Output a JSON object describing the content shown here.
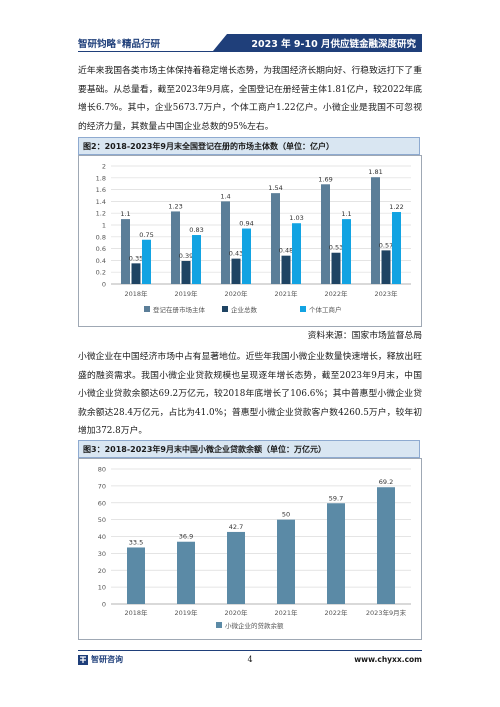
{
  "header": {
    "brand": "智研钧略",
    "brand_mark": "®",
    "brand_suffix": "精品行研",
    "report_title": "2023 年 9-10 月供应链金融深度研究"
  },
  "paragraphs": {
    "p1": "近年来我国各类市场主体保持着稳定增长态势，为我国经济长期向好、行稳致远打下了重要基础。从总量看，截至2023年9月底，全国登记在册经营主体1.81亿户，较2022年底增长6.7%。其中，企业5673.7万户，个体工商户1.22亿户。小微企业是我国不可忽视的经济力量，其数量占中国企业总数的95%左右。",
    "p2": "小微企业在中国经济市场中占有显著地位。近些年我国小微企业数量快速增长，释放出旺盛的融资需求。我国小微企业贷款规模也呈现逐年增长态势，截至2023年9月末，中国小微企业贷款余额达69.2万亿元，较2018年底增长了106.6%；其中普惠型小微企业贷款余额达28.4万亿元，占比为41.0%；普惠型小微企业贷款客户数4260.5万户，较年初增加372.8万户。"
  },
  "fig2": {
    "title": "图2：2018-2023年9月末全国登记在册的市场主体数（单位：亿户）",
    "source": "资料来源：国家市场监督总局"
  },
  "fig3": {
    "title": "图3：2018-2023年9月末中国小微企业贷款余额（单位：万亿元）"
  },
  "footer": {
    "company": "智研咨询",
    "page": "4",
    "url": "www.chyxx.com"
  },
  "chart_data": [
    {
      "type": "bar",
      "categories": [
        "2018年",
        "2019年",
        "2020年",
        "2021年",
        "2022年",
        "2023年"
      ],
      "series": [
        {
          "name": "登记在册市场主体",
          "values": [
            1.1,
            1.23,
            1.4,
            1.54,
            1.69,
            1.81
          ],
          "color": "#5b7e98"
        },
        {
          "name": "企业总数",
          "values": [
            0.35,
            0.39,
            0.43,
            0.48,
            0.53,
            0.57
          ],
          "color": "#1f4463"
        },
        {
          "name": "个体工商户",
          "values": [
            0.75,
            0.83,
            0.94,
            1.03,
            1.1,
            1.22
          ],
          "color": "#12a3e2"
        }
      ],
      "yticks": [
        "0",
        "0.2",
        "0.4",
        "0.6",
        "0.8",
        "1",
        "1.2",
        "1.4",
        "1.6",
        "1.8",
        "2"
      ],
      "ylim": [
        0,
        2
      ],
      "grid": true,
      "legend": "bottom"
    },
    {
      "type": "bar",
      "categories": [
        "2018年",
        "2019年",
        "2020年",
        "2021年",
        "2022年",
        "2023年9月末"
      ],
      "series": [
        {
          "name": "小微企业的贷款余额",
          "values": [
            33.5,
            36.9,
            42.7,
            50,
            59.7,
            69.2
          ],
          "color": "#5b8aa6"
        }
      ],
      "yticks": [
        "0",
        "10",
        "20",
        "30",
        "40",
        "50",
        "60",
        "70",
        "80"
      ],
      "ylim": [
        0,
        80
      ],
      "grid": true,
      "legend": "bottom"
    }
  ]
}
